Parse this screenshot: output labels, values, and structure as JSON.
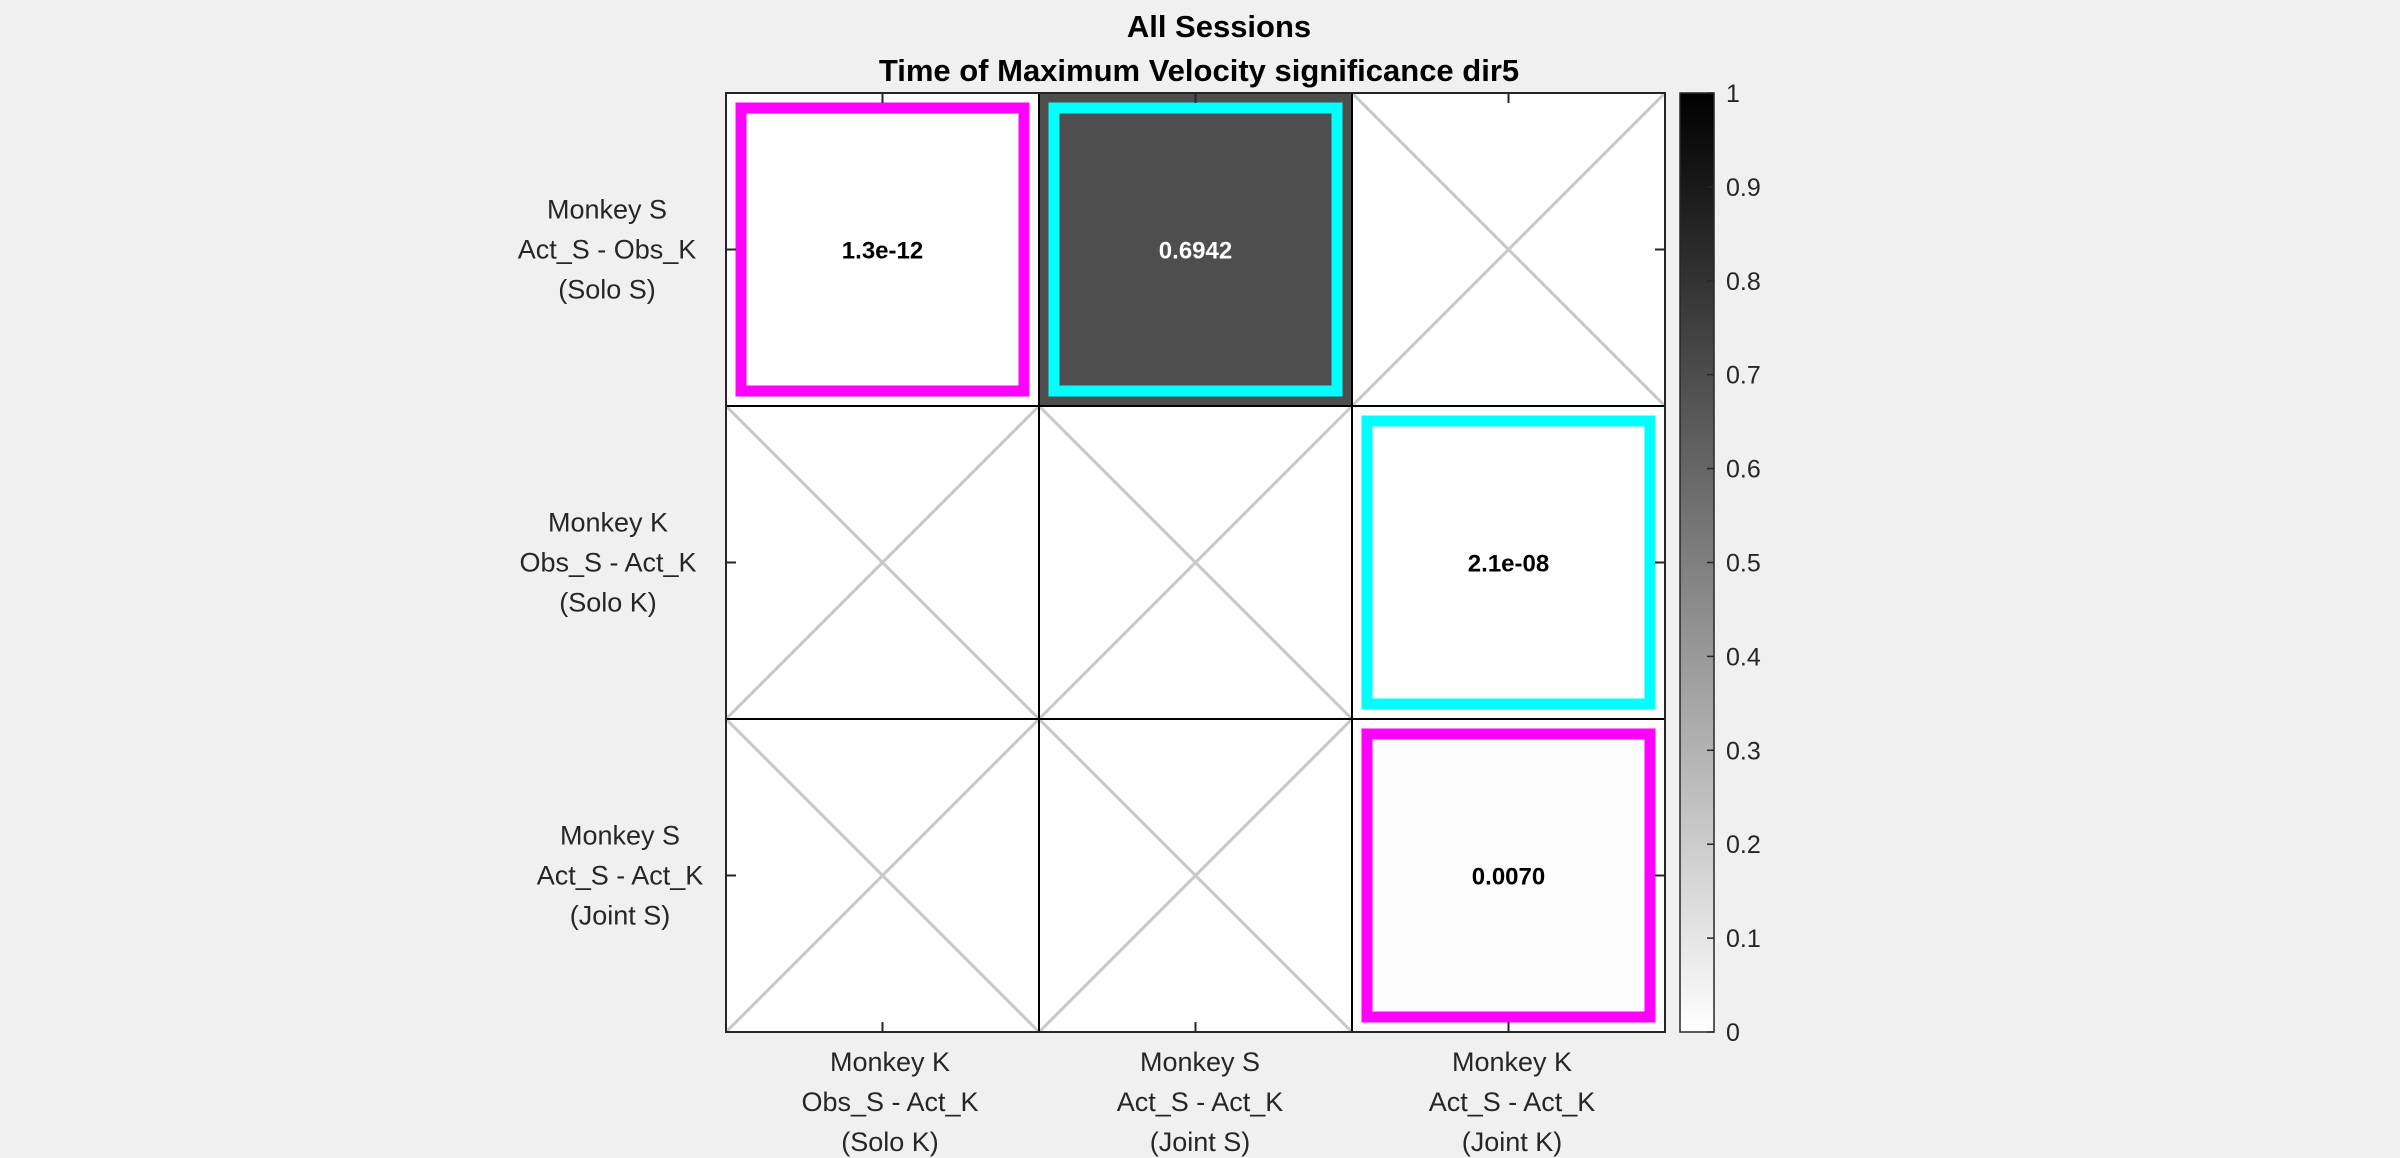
{
  "chart_data": {
    "type": "heatmap",
    "title_lines": [
      "All Sessions",
      "Time of Maximum Velocity significance dir5"
    ],
    "x_tick_labels": [
      [
        "Monkey K",
        "Obs_S - Act_K",
        "(Solo K)"
      ],
      [
        "Monkey S",
        "Act_S - Act_K",
        "(Joint S)"
      ],
      [
        "Monkey K",
        "Act_S - Act_K",
        "(Joint K)"
      ]
    ],
    "y_tick_labels": [
      [
        "Monkey S",
        "Act_S - Obs_K",
        "(Solo S)"
      ],
      [
        "Monkey K",
        "Obs_S - Act_K",
        "(Solo K)"
      ],
      [
        "Monkey S",
        "Act_S - Act_K",
        "(Joint S)"
      ]
    ],
    "cells": [
      {
        "row": 0,
        "col": 0,
        "value": 1.3e-12,
        "label": "1.3e-12",
        "highlight": "#ff00ff"
      },
      {
        "row": 0,
        "col": 1,
        "value": 0.6942,
        "label": "0.6942",
        "highlight": "#00ffff"
      },
      {
        "row": 0,
        "col": 2,
        "value": null,
        "label": "",
        "highlight": null
      },
      {
        "row": 1,
        "col": 0,
        "value": null,
        "label": "",
        "highlight": null
      },
      {
        "row": 1,
        "col": 1,
        "value": null,
        "label": "",
        "highlight": null
      },
      {
        "row": 1,
        "col": 2,
        "value": 2.1e-08,
        "label": "2.1e-08",
        "highlight": "#00ffff"
      },
      {
        "row": 2,
        "col": 0,
        "value": null,
        "label": "",
        "highlight": null
      },
      {
        "row": 2,
        "col": 1,
        "value": null,
        "label": "",
        "highlight": null
      },
      {
        "row": 2,
        "col": 2,
        "value": 0.007,
        "label": "0.0070",
        "highlight": "#ff00ff"
      }
    ],
    "colorbar": {
      "min": 0,
      "max": 1,
      "ticks": [
        0,
        0.1,
        0.2,
        0.3,
        0.4,
        0.5,
        0.6,
        0.7,
        0.8,
        0.9,
        1
      ],
      "tick_labels": [
        "0",
        "0.1",
        "0.2",
        "0.3",
        "0.4",
        "0.5",
        "0.6",
        "0.7",
        "0.8",
        "0.9",
        "1"
      ],
      "colormap": "white-to-black"
    },
    "grid": true,
    "legend": "colorbar-right"
  }
}
